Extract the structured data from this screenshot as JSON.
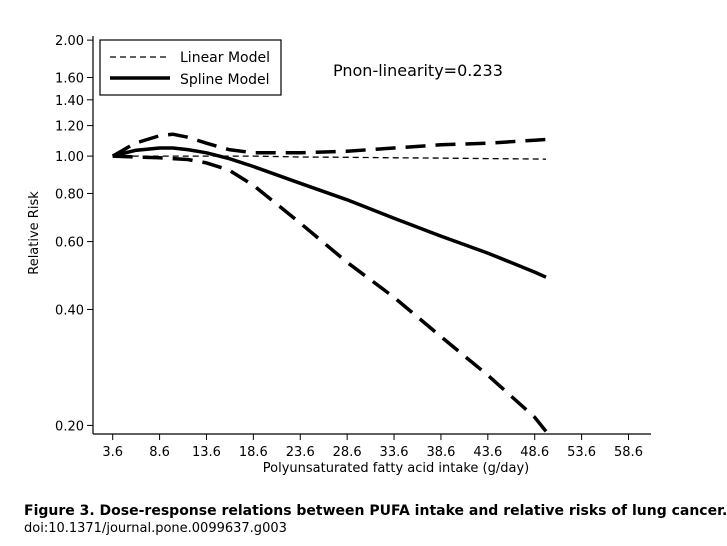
{
  "chart_data": {
    "type": "line",
    "xlabel": "Polyunsaturated fatty acid intake (g/day)",
    "ylabel": "Relative Risk",
    "x_ticks": [
      "3.6",
      "8.6",
      "13.6",
      "18.6",
      "23.6",
      "28.6",
      "33.6",
      "38.6",
      "43.6",
      "48.6",
      "53.6",
      "58.6"
    ],
    "y_ticks": [
      "0.20",
      "0.40",
      "0.60",
      "0.80",
      "1.00",
      "1.20",
      "1.40",
      "1.60",
      "2.00"
    ],
    "y_scale": "log",
    "xlim": [
      1.5,
      61
    ],
    "ylim": [
      0.19,
      2.05
    ],
    "legend": {
      "position": "top-left",
      "entries": [
        {
          "label": "Linear Model",
          "style": "thin-dashed"
        },
        {
          "label": "Spline Model",
          "style": "thick-solid"
        }
      ]
    },
    "annotation": "Pnon-linearity=0.233",
    "series": [
      {
        "name": "Linear Model",
        "style": "thin-dashed",
        "x": [
          3.6,
          8.6,
          13.6,
          18.6,
          23.6,
          28.6,
          33.6,
          38.6,
          43.6,
          48.6,
          49.8
        ],
        "values": [
          1.0,
          1.0,
          1.0,
          1.0,
          0.995,
          0.993,
          0.99,
          0.988,
          0.985,
          0.983,
          0.982
        ]
      },
      {
        "name": "Spline Model",
        "style": "thick-solid",
        "x": [
          3.6,
          6.0,
          8.6,
          10.0,
          11.6,
          13.6,
          16.0,
          18.6,
          23.6,
          28.6,
          33.6,
          38.6,
          43.6,
          48.6,
          49.8
        ],
        "values": [
          1.0,
          1.035,
          1.05,
          1.05,
          1.04,
          1.02,
          0.985,
          0.94,
          0.85,
          0.77,
          0.69,
          0.62,
          0.56,
          0.5,
          0.485
        ]
      },
      {
        "style": "thick-dashed",
        "x": [
          3.6,
          6.0,
          8.6,
          10.0,
          11.6,
          13.6,
          16.0,
          18.6,
          23.6,
          28.6,
          33.6,
          38.6,
          43.6,
          48.6,
          49.8
        ],
        "values": [
          1.0,
          1.08,
          1.13,
          1.14,
          1.12,
          1.08,
          1.04,
          1.02,
          1.02,
          1.03,
          1.05,
          1.07,
          1.08,
          1.1,
          1.105
        ]
      },
      {
        "style": "thick-dashed",
        "x": [
          3.6,
          6.0,
          8.6,
          10.0,
          11.6,
          13.6,
          16.0,
          18.6,
          23.6,
          28.6,
          33.6,
          38.6,
          43.6,
          48.6,
          49.8
        ],
        "values": [
          1.0,
          0.995,
          0.99,
          0.985,
          0.98,
          0.96,
          0.92,
          0.84,
          0.67,
          0.53,
          0.43,
          0.34,
          0.27,
          0.21,
          0.193
        ]
      }
    ]
  },
  "caption": {
    "title": "Figure 3. Dose-response relations between PUFA intake and relative risks of lung cancer.",
    "doi": "doi:10.1371/journal.pone.0099637.g003"
  }
}
